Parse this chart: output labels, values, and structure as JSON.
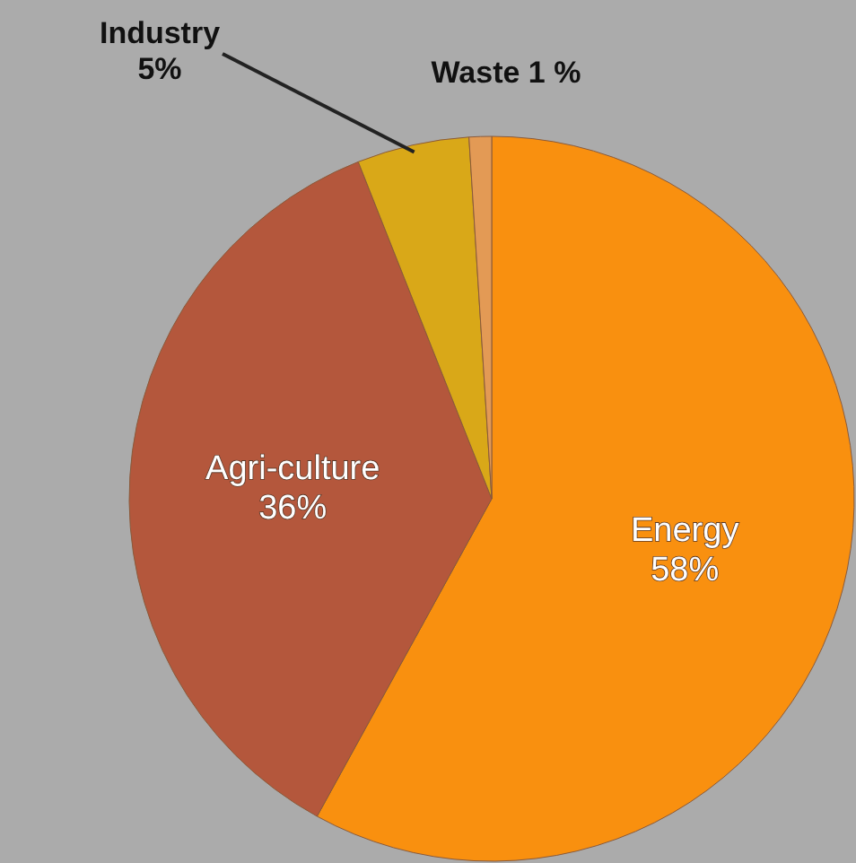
{
  "chart_data": {
    "type": "pie",
    "categories": [
      "Energy",
      "Agri-culture",
      "Industry",
      "Waste"
    ],
    "values": [
      58,
      36,
      5,
      1
    ],
    "colors": [
      "#f9900f",
      "#b4573c",
      "#d9a818",
      "#e39a55"
    ],
    "value_labels": [
      "58%",
      "36%",
      "5%",
      "1 %"
    ]
  }
}
